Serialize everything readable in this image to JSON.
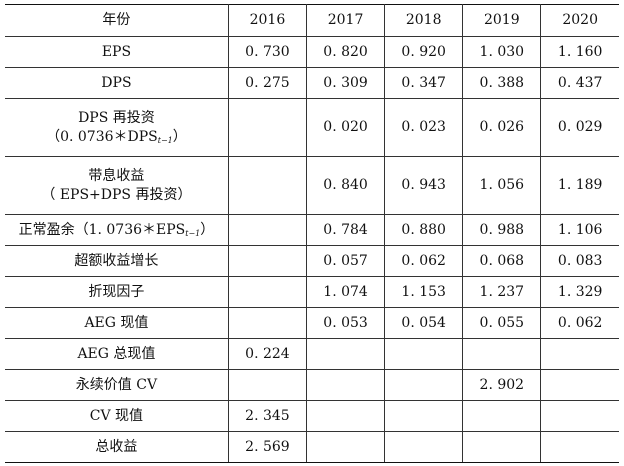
{
  "table": {
    "header": [
      "年份",
      "2016",
      "2017",
      "2018",
      "2019",
      "2020"
    ],
    "rows": [
      {
        "label": "EPS",
        "cells": [
          "0. 730",
          "0. 820",
          "0. 920",
          "1. 030",
          "1. 160"
        ]
      },
      {
        "label": "DPS",
        "cells": [
          "0. 275",
          "0. 309",
          "0. 347",
          "0. 388",
          "0. 437"
        ]
      },
      {
        "label": "DPS 再投资",
        "label2": "（0. 0736＊DPS",
        "label2_sub": "t−1",
        "label2_end": "）",
        "cells": [
          "",
          "0. 020",
          "0. 023",
          "0. 026",
          "0. 029"
        ]
      },
      {
        "label": "带息收益",
        "label2": "（ EPS+DPS 再投资）",
        "cells": [
          "",
          "0. 840",
          "0. 943",
          "1. 056",
          "1. 189"
        ]
      },
      {
        "label": "正常盈余（1. 0736＊EPS",
        "label_sub": "t−1",
        "label_end": "）",
        "cells": [
          "",
          "0. 784",
          "0. 880",
          "0. 988",
          "1. 106"
        ]
      },
      {
        "label": "超额收益增长",
        "cells": [
          "",
          "0. 057",
          "0. 062",
          "0. 068",
          "0. 083"
        ]
      },
      {
        "label": "折现因子",
        "cells": [
          "",
          "1. 074",
          "1. 153",
          "1. 237",
          "1. 329"
        ]
      },
      {
        "label": "AEG 现值",
        "cells": [
          "",
          "0. 053",
          "0. 054",
          "0. 055",
          "0. 062"
        ]
      },
      {
        "label": "AEG 总现值",
        "cells": [
          "0. 224",
          "",
          "",
          "",
          ""
        ]
      },
      {
        "label": "永续价值 CV",
        "cells": [
          "",
          "",
          "",
          "2. 902",
          ""
        ]
      },
      {
        "label": "CV 现值",
        "cells": [
          "2. 345",
          "",
          "",
          "",
          ""
        ]
      },
      {
        "label": "总收益",
        "cells": [
          "2. 569",
          "",
          "",
          "",
          ""
        ]
      }
    ]
  }
}
